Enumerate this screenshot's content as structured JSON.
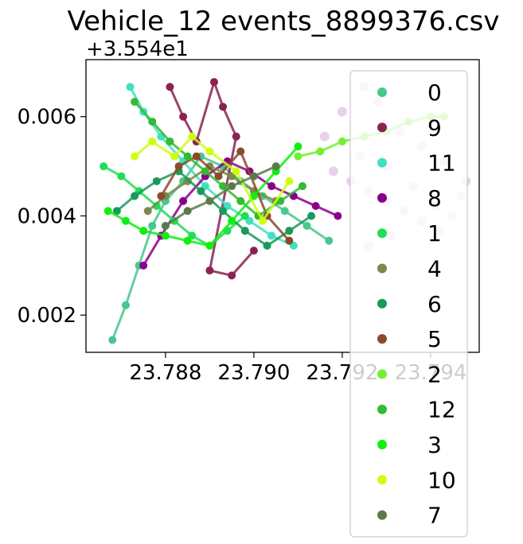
{
  "chart_data": {
    "type": "scatter",
    "title": "Vehicle_12 events_8899376.csv",
    "xlabel": "",
    "ylabel": "",
    "y_offset_label": "+3.554e1",
    "y_offset": 35.54,
    "xlim": [
      23.7862,
      23.7951
    ],
    "ylim": [
      0.00125,
      0.00715
    ],
    "x_ticks": [
      23.788,
      23.79,
      23.792,
      23.794
    ],
    "x_tick_labels": [
      "23.788",
      "23.790",
      "23.792",
      "23.794"
    ],
    "y_ticks": [
      0.002,
      0.004,
      0.006
    ],
    "y_tick_labels": [
      "0.002",
      "0.004",
      "0.006"
    ],
    "grid": false,
    "legend_position": "right",
    "series": [
      {
        "name": "0",
        "color": "#48c78e",
        "points": [
          [
            23.7868,
            0.0015
          ],
          [
            23.7871,
            0.0022
          ],
          [
            23.7874,
            0.003
          ],
          [
            23.7877,
            0.0038
          ],
          [
            23.788,
            0.0043
          ],
          [
            23.7884,
            0.0047
          ],
          [
            23.7888,
            0.0052
          ],
          [
            23.7893,
            0.005
          ],
          [
            23.7897,
            0.0047
          ],
          [
            23.7902,
            0.0044
          ],
          [
            23.7907,
            0.0041
          ],
          [
            23.7912,
            0.0038
          ],
          [
            23.7917,
            0.0035
          ]
        ]
      },
      {
        "name": "9",
        "color": "#8b2252",
        "points": [
          [
            23.7881,
            0.0066
          ],
          [
            23.7884,
            0.006
          ],
          [
            23.7887,
            0.0055
          ],
          [
            23.7891,
            0.0067
          ],
          [
            23.7893,
            0.0062
          ],
          [
            23.7896,
            0.0056
          ],
          [
            23.789,
            0.0029
          ],
          [
            23.7895,
            0.0028
          ],
          [
            23.79,
            0.0033
          ]
        ]
      },
      {
        "name": "11",
        "color": "#40e0c0",
        "points": [
          [
            23.7872,
            0.0066
          ],
          [
            23.7875,
            0.0061
          ],
          [
            23.7879,
            0.0056
          ],
          [
            23.7884,
            0.0051
          ],
          [
            23.7889,
            0.0046
          ],
          [
            23.7894,
            0.0042
          ],
          [
            23.7899,
            0.0039
          ],
          [
            23.7904,
            0.0036
          ],
          [
            23.7909,
            0.0034
          ]
        ]
      },
      {
        "name": "8",
        "color": "#8b008b",
        "points": [
          [
            23.7875,
            0.003
          ],
          [
            23.7879,
            0.0036
          ],
          [
            23.7884,
            0.0043
          ],
          [
            23.7889,
            0.0048
          ],
          [
            23.7894,
            0.0051
          ],
          [
            23.7899,
            0.0049
          ],
          [
            23.7904,
            0.0046
          ],
          [
            23.7909,
            0.0044
          ],
          [
            23.7914,
            0.0042
          ],
          [
            23.7919,
            0.004
          ]
        ]
      },
      {
        "name": "1",
        "color": "#22dd55",
        "points": [
          [
            23.7866,
            0.005
          ],
          [
            23.787,
            0.0048
          ],
          [
            23.7874,
            0.0045
          ],
          [
            23.7878,
            0.0042
          ],
          [
            23.7882,
            0.0039
          ],
          [
            23.7886,
            0.0036
          ],
          [
            23.789,
            0.0034
          ],
          [
            23.7894,
            0.0037
          ],
          [
            23.7898,
            0.004
          ]
        ]
      },
      {
        "name": "4",
        "color": "#7a8a4a",
        "points": [
          [
            23.7876,
            0.0041
          ],
          [
            23.788,
            0.0044
          ],
          [
            23.7885,
            0.0047
          ],
          [
            23.789,
            0.005
          ],
          [
            23.7895,
            0.0048
          ],
          [
            23.79,
            0.0045
          ],
          [
            23.7905,
            0.0043
          ]
        ]
      },
      {
        "name": "6",
        "color": "#1a9a5a",
        "points": [
          [
            23.7869,
            0.0041
          ],
          [
            23.7873,
            0.0044
          ],
          [
            23.7878,
            0.0047
          ],
          [
            23.7883,
            0.0049
          ],
          [
            23.7888,
            0.0045
          ],
          [
            23.7893,
            0.0041
          ],
          [
            23.7898,
            0.0037
          ],
          [
            23.7903,
            0.0034
          ],
          [
            23.7908,
            0.0037
          ],
          [
            23.7913,
            0.004
          ]
        ]
      },
      {
        "name": "5",
        "color": "#8b4a2a",
        "points": [
          [
            23.7879,
            0.0044
          ],
          [
            23.7883,
            0.005
          ],
          [
            23.7887,
            0.0052
          ],
          [
            23.7892,
            0.0048
          ],
          [
            23.7897,
            0.0053
          ],
          [
            23.7903,
            0.004
          ],
          [
            23.7908,
            0.0035
          ]
        ]
      },
      {
        "name": "2",
        "color": "#77ee33",
        "points": [
          [
            23.791,
            0.0052
          ],
          [
            23.7915,
            0.0053
          ],
          [
            23.792,
            0.0055
          ],
          [
            23.7925,
            0.0056
          ],
          [
            23.793,
            0.0057
          ],
          [
            23.7935,
            0.0059
          ],
          [
            23.794,
            0.006
          ],
          [
            23.7943,
            0.006
          ]
        ]
      },
      {
        "name": "12",
        "color": "#33bb33",
        "points": [
          [
            23.7873,
            0.0063
          ],
          [
            23.7877,
            0.0059
          ],
          [
            23.7881,
            0.0055
          ],
          [
            23.7885,
            0.0052
          ],
          [
            23.7889,
            0.0049
          ],
          [
            23.7893,
            0.0046
          ],
          [
            23.7897,
            0.0043
          ],
          [
            23.7901,
            0.004
          ],
          [
            23.7906,
            0.0043
          ],
          [
            23.7911,
            0.0046
          ]
        ]
      },
      {
        "name": "3",
        "color": "#11ee11",
        "points": [
          [
            23.7867,
            0.0041
          ],
          [
            23.7871,
            0.0039
          ],
          [
            23.7875,
            0.0037
          ],
          [
            23.788,
            0.0036
          ],
          [
            23.7885,
            0.0035
          ],
          [
            23.789,
            0.0034
          ],
          [
            23.7895,
            0.0039
          ],
          [
            23.79,
            0.0044
          ],
          [
            23.7905,
            0.0049
          ],
          [
            23.791,
            0.0054
          ]
        ]
      },
      {
        "name": "10",
        "color": "#ccff11",
        "points": [
          [
            23.7873,
            0.0052
          ],
          [
            23.7877,
            0.0055
          ],
          [
            23.7882,
            0.0052
          ],
          [
            23.7886,
            0.0056
          ],
          [
            23.789,
            0.0053
          ],
          [
            23.7896,
            0.0049
          ],
          [
            23.7902,
            0.0039
          ],
          [
            23.7908,
            0.0047
          ]
        ]
      },
      {
        "name": "7",
        "color": "#5a7a4a",
        "points": [
          [
            23.788,
            0.0038
          ],
          [
            23.7885,
            0.0041
          ],
          [
            23.789,
            0.0043
          ],
          [
            23.7895,
            0.0046
          ],
          [
            23.79,
            0.0048
          ],
          [
            23.7905,
            0.005
          ]
        ]
      }
    ],
    "faded_points_color": "#e6c8ea",
    "faded_points": [
      [
        23.7918,
        0.0049
      ],
      [
        23.7922,
        0.0047
      ],
      [
        23.7926,
        0.0045
      ],
      [
        23.793,
        0.0043
      ],
      [
        23.7934,
        0.0041
      ],
      [
        23.7938,
        0.0039
      ],
      [
        23.7942,
        0.0037
      ],
      [
        23.7945,
        0.004
      ],
      [
        23.7947,
        0.0044
      ],
      [
        23.7948,
        0.0047
      ],
      [
        23.7943,
        0.0051
      ],
      [
        23.7938,
        0.0054
      ],
      [
        23.7933,
        0.0057
      ],
      [
        23.7928,
        0.0063
      ],
      [
        23.7925,
        0.0066
      ],
      [
        23.792,
        0.0061
      ],
      [
        23.7916,
        0.0056
      ],
      [
        23.7924,
        0.0052
      ],
      [
        23.793,
        0.005
      ],
      [
        23.7936,
        0.0046
      ],
      [
        23.7941,
        0.0042
      ],
      [
        23.7931,
        0.0036
      ],
      [
        23.7926,
        0.0034
      ]
    ]
  }
}
